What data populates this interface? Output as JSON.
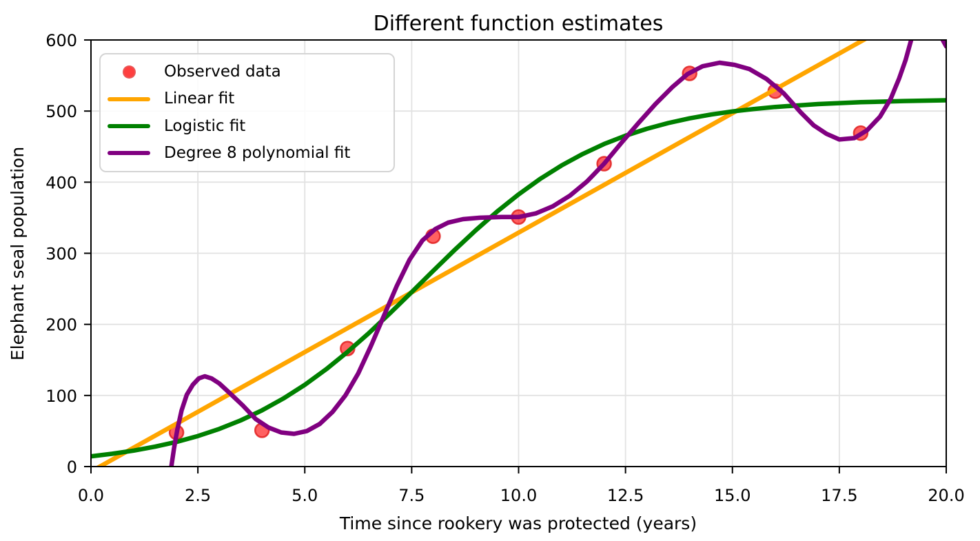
{
  "chart_data": {
    "type": "line+scatter",
    "title": "Different function estimates",
    "xlabel": "Time since rookery was protected (years)",
    "ylabel": "Elephant seal population",
    "xlim": [
      0,
      20
    ],
    "ylim": [
      0,
      600
    ],
    "xticks": {
      "values": [
        0,
        2.5,
        5,
        7.5,
        10,
        12.5,
        15,
        17.5,
        20
      ],
      "labels": [
        "0.0",
        "2.5",
        "5.0",
        "7.5",
        "10.0",
        "12.5",
        "15.0",
        "17.5",
        "20.0"
      ]
    },
    "yticks": {
      "values": [
        0,
        100,
        200,
        300,
        400,
        500,
        600
      ],
      "labels": [
        "0",
        "100",
        "200",
        "300",
        "400",
        "500",
        "600"
      ]
    },
    "grid": true,
    "grid_color": "#e2e2e2",
    "spine_color": "#000000",
    "legend_position": "upper left",
    "scatter": {
      "label": "Observed data",
      "color": "#ff0000",
      "edge_color": "#e02020",
      "fill_opacity": 0.62,
      "marker_radius": 10,
      "x": [
        2,
        4,
        6,
        8,
        10,
        12,
        14,
        16,
        18
      ],
      "y": [
        48,
        51,
        166,
        324,
        351,
        426,
        553,
        528,
        469
      ]
    },
    "series": [
      {
        "label": "Linear fit",
        "color": "#ffa500",
        "points": [
          [
            0,
            -7
          ],
          [
            20,
            665
          ]
        ]
      },
      {
        "label": "Logistic fit",
        "color": "#008000",
        "points": [
          [
            0,
            14.4
          ],
          [
            0.5,
            18.0
          ],
          [
            1,
            22.5
          ],
          [
            1.5,
            28.0
          ],
          [
            2,
            34.7
          ],
          [
            2.5,
            42.9
          ],
          [
            3,
            52.9
          ],
          [
            3.5,
            64.9
          ],
          [
            4,
            79.1
          ],
          [
            4.5,
            95.8
          ],
          [
            5,
            115.0
          ],
          [
            5.5,
            136.9
          ],
          [
            6,
            161.3
          ],
          [
            6.5,
            187.8
          ],
          [
            7,
            216.1
          ],
          [
            7.5,
            245.4
          ],
          [
            8,
            275.1
          ],
          [
            8.5,
            304.4
          ],
          [
            9,
            332.5
          ],
          [
            9.5,
            358.8
          ],
          [
            10,
            382.8
          ],
          [
            10.5,
            404.4
          ],
          [
            11,
            423.4
          ],
          [
            11.5,
            439.7
          ],
          [
            12,
            453.7
          ],
          [
            12.5,
            465.4
          ],
          [
            13,
            475.1
          ],
          [
            13.5,
            483.2
          ],
          [
            14,
            489.8
          ],
          [
            14.5,
            495.1
          ],
          [
            15,
            499.5
          ],
          [
            15.5,
            502.9
          ],
          [
            16,
            505.8
          ],
          [
            17,
            509.9
          ],
          [
            18,
            512.5
          ],
          [
            19,
            514.1
          ],
          [
            20,
            515.2
          ]
        ]
      },
      {
        "label": "Degree 8 polynomial fit",
        "color": "#800080",
        "points": [
          [
            1.78,
            -40
          ],
          [
            1.86,
            -8
          ],
          [
            1.94,
            25
          ],
          [
            2.02,
            52
          ],
          [
            2.12,
            79
          ],
          [
            2.24,
            101
          ],
          [
            2.38,
            115
          ],
          [
            2.52,
            124
          ],
          [
            2.66,
            127
          ],
          [
            2.82,
            124
          ],
          [
            3.0,
            117
          ],
          [
            3.25,
            103
          ],
          [
            3.55,
            86
          ],
          [
            3.85,
            67
          ],
          [
            4.15,
            55
          ],
          [
            4.45,
            48
          ],
          [
            4.75,
            46
          ],
          [
            5.05,
            50
          ],
          [
            5.35,
            60
          ],
          [
            5.65,
            77
          ],
          [
            5.95,
            100
          ],
          [
            6.25,
            131
          ],
          [
            6.55,
            170
          ],
          [
            6.85,
            212
          ],
          [
            7.15,
            254
          ],
          [
            7.45,
            291
          ],
          [
            7.75,
            318
          ],
          [
            8.05,
            334
          ],
          [
            8.35,
            343
          ],
          [
            8.7,
            348
          ],
          [
            9.1,
            350
          ],
          [
            9.6,
            351
          ],
          [
            10.0,
            351
          ],
          [
            10.4,
            356
          ],
          [
            10.8,
            366
          ],
          [
            11.2,
            381
          ],
          [
            11.6,
            401
          ],
          [
            12.0,
            426
          ],
          [
            12.4,
            455
          ],
          [
            12.8,
            483
          ],
          [
            13.2,
            510
          ],
          [
            13.6,
            534
          ],
          [
            13.95,
            552
          ],
          [
            14.3,
            563
          ],
          [
            14.7,
            568
          ],
          [
            15.05,
            565
          ],
          [
            15.4,
            559
          ],
          [
            15.8,
            545
          ],
          [
            16.2,
            525
          ],
          [
            16.6,
            498
          ],
          [
            16.9,
            480
          ],
          [
            17.2,
            468
          ],
          [
            17.5,
            460
          ],
          [
            17.85,
            462
          ],
          [
            18.15,
            473
          ],
          [
            18.45,
            492
          ],
          [
            18.7,
            517
          ],
          [
            18.9,
            546
          ],
          [
            19.05,
            572
          ],
          [
            19.18,
            600
          ],
          [
            19.3,
            626
          ],
          [
            19.5,
            642
          ],
          [
            19.65,
            637
          ],
          [
            19.8,
            616
          ],
          [
            19.9,
            602
          ],
          [
            20,
            591
          ]
        ]
      }
    ]
  }
}
